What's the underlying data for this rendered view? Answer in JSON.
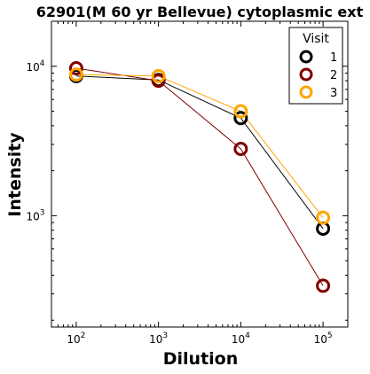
{
  "chart_data": {
    "type": "line",
    "title": "62901(M 60 yr Bellevue) cytoplasmic ext",
    "xlabel": "Dilution",
    "ylabel": "Intensity",
    "xscale": "log",
    "yscale": "log",
    "xlim": [
      50,
      200000
    ],
    "ylim": [
      180,
      20000
    ],
    "x": [
      100,
      1000,
      10000,
      100000
    ],
    "xtick_labels": [
      {
        "base": "10",
        "exp": "2"
      },
      {
        "base": "10",
        "exp": "3"
      },
      {
        "base": "10",
        "exp": "4"
      },
      {
        "base": "10",
        "exp": "5"
      }
    ],
    "ytick_labels": [
      {
        "base": "10",
        "exp": "3"
      },
      {
        "base": "10",
        "exp": "4"
      }
    ],
    "series": [
      {
        "name": "1",
        "color": "#000000",
        "values": [
          8600,
          8100,
          4500,
          820
        ]
      },
      {
        "name": "2",
        "color": "#800000",
        "values": [
          9700,
          8000,
          2800,
          340
        ]
      },
      {
        "name": "3",
        "color": "#FFA500",
        "values": [
          8800,
          8600,
          5000,
          970
        ]
      }
    ],
    "legend": {
      "title": "Visit",
      "position": "top-right"
    },
    "grid": false
  }
}
